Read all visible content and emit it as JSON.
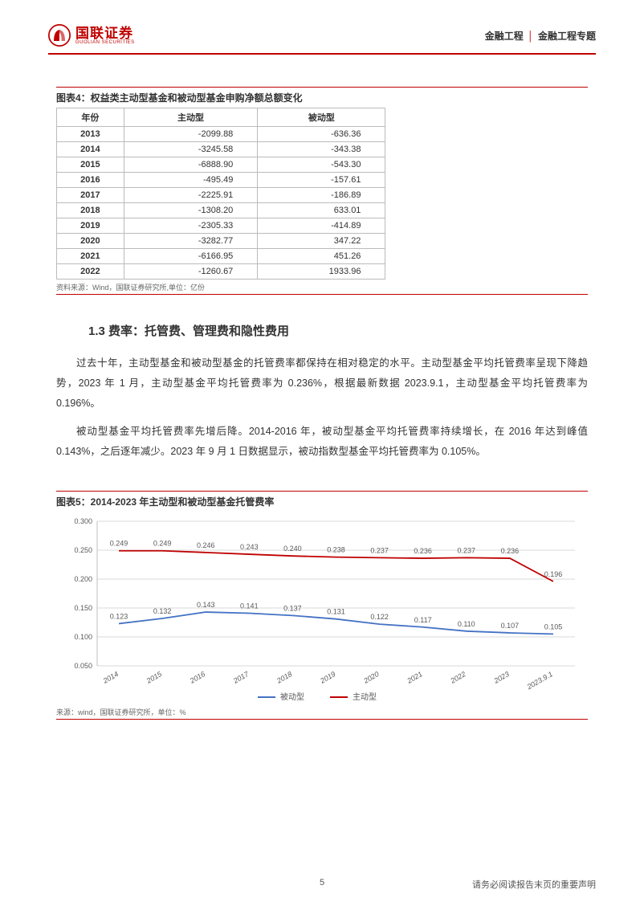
{
  "header": {
    "logo_cn": "国联证券",
    "logo_en": "GUOLIAN SECURITIES",
    "right_a": "金融工程",
    "right_b": "金融工程专题"
  },
  "table4": {
    "title": "图表4：权益类主动型基金和被动型基金申购净额总额变化",
    "headers": [
      "年份",
      "主动型",
      "被动型"
    ],
    "rows": [
      [
        "2013",
        "-2099.88",
        "-636.36"
      ],
      [
        "2014",
        "-3245.58",
        "-343.38"
      ],
      [
        "2015",
        "-6888.90",
        "-543.30"
      ],
      [
        "2016",
        "-495.49",
        "-157.61"
      ],
      [
        "2017",
        "-2225.91",
        "-186.89"
      ],
      [
        "2018",
        "-1308.20",
        "633.01"
      ],
      [
        "2019",
        "-2305.33",
        "-414.89"
      ],
      [
        "2020",
        "-3282.77",
        "347.22"
      ],
      [
        "2021",
        "-6166.95",
        "451.26"
      ],
      [
        "2022",
        "-1260.67",
        "1933.96"
      ]
    ],
    "source": "资料来源：Wind，国联证券研究所,单位：亿份"
  },
  "section": {
    "title": "1.3 费率：托管费、管理费和隐性费用",
    "para1": "过去十年，主动型基金和被动型基金的托管费率都保持在相对稳定的水平。主动型基金平均托管费率呈现下降趋势，2023 年 1 月，主动型基金平均托管费率为 0.236%，根据最新数据 2023.9.1，主动型基金平均托管费率为 0.196%。",
    "para2": "被动型基金平均托管费率先增后降。2014-2016 年，被动型基金平均托管费率持续增长，在 2016 年达到峰值 0.143%，之后逐年减少。2023 年 9 月 1 日数据显示，被动指数型基金平均托管费率为 0.105%。"
  },
  "chart5": {
    "title": "图表5：2014-2023 年主动型和被动型基金托管费率",
    "type": "line",
    "x_labels": [
      "2014",
      "2015",
      "2016",
      "2017",
      "2018",
      "2019",
      "2020",
      "2021",
      "2022",
      "2023",
      "2023.9.1"
    ],
    "y_ticks": [
      0.05,
      0.1,
      0.15,
      0.2,
      0.25,
      0.3
    ],
    "y_tick_labels": [
      "0.050",
      "0.100",
      "0.150",
      "0.200",
      "0.250",
      "0.300"
    ],
    "ylim": [
      0.05,
      0.3
    ],
    "series": [
      {
        "name": "被动型",
        "color": "#4472c4",
        "values": [
          0.123,
          0.132,
          0.143,
          0.141,
          0.137,
          0.131,
          0.122,
          0.117,
          0.11,
          0.107,
          0.105
        ]
      },
      {
        "name": "主动型",
        "color": "#c00000",
        "values": [
          0.249,
          0.249,
          0.246,
          0.243,
          0.24,
          0.238,
          0.237,
          0.236,
          0.237,
          0.236,
          0.196
        ]
      }
    ],
    "grid_color": "#d9d9d9",
    "axis_color": "#bfbfbf",
    "label_color": "#595959",
    "data_label_fontsize": 9,
    "axis_label_fontsize": 9,
    "line_width": 1.8,
    "source": "来源：wind，国联证券研究所，单位：%"
  },
  "footer": {
    "page": "5",
    "disclaimer": "请务必阅读报告末页的重要声明"
  }
}
